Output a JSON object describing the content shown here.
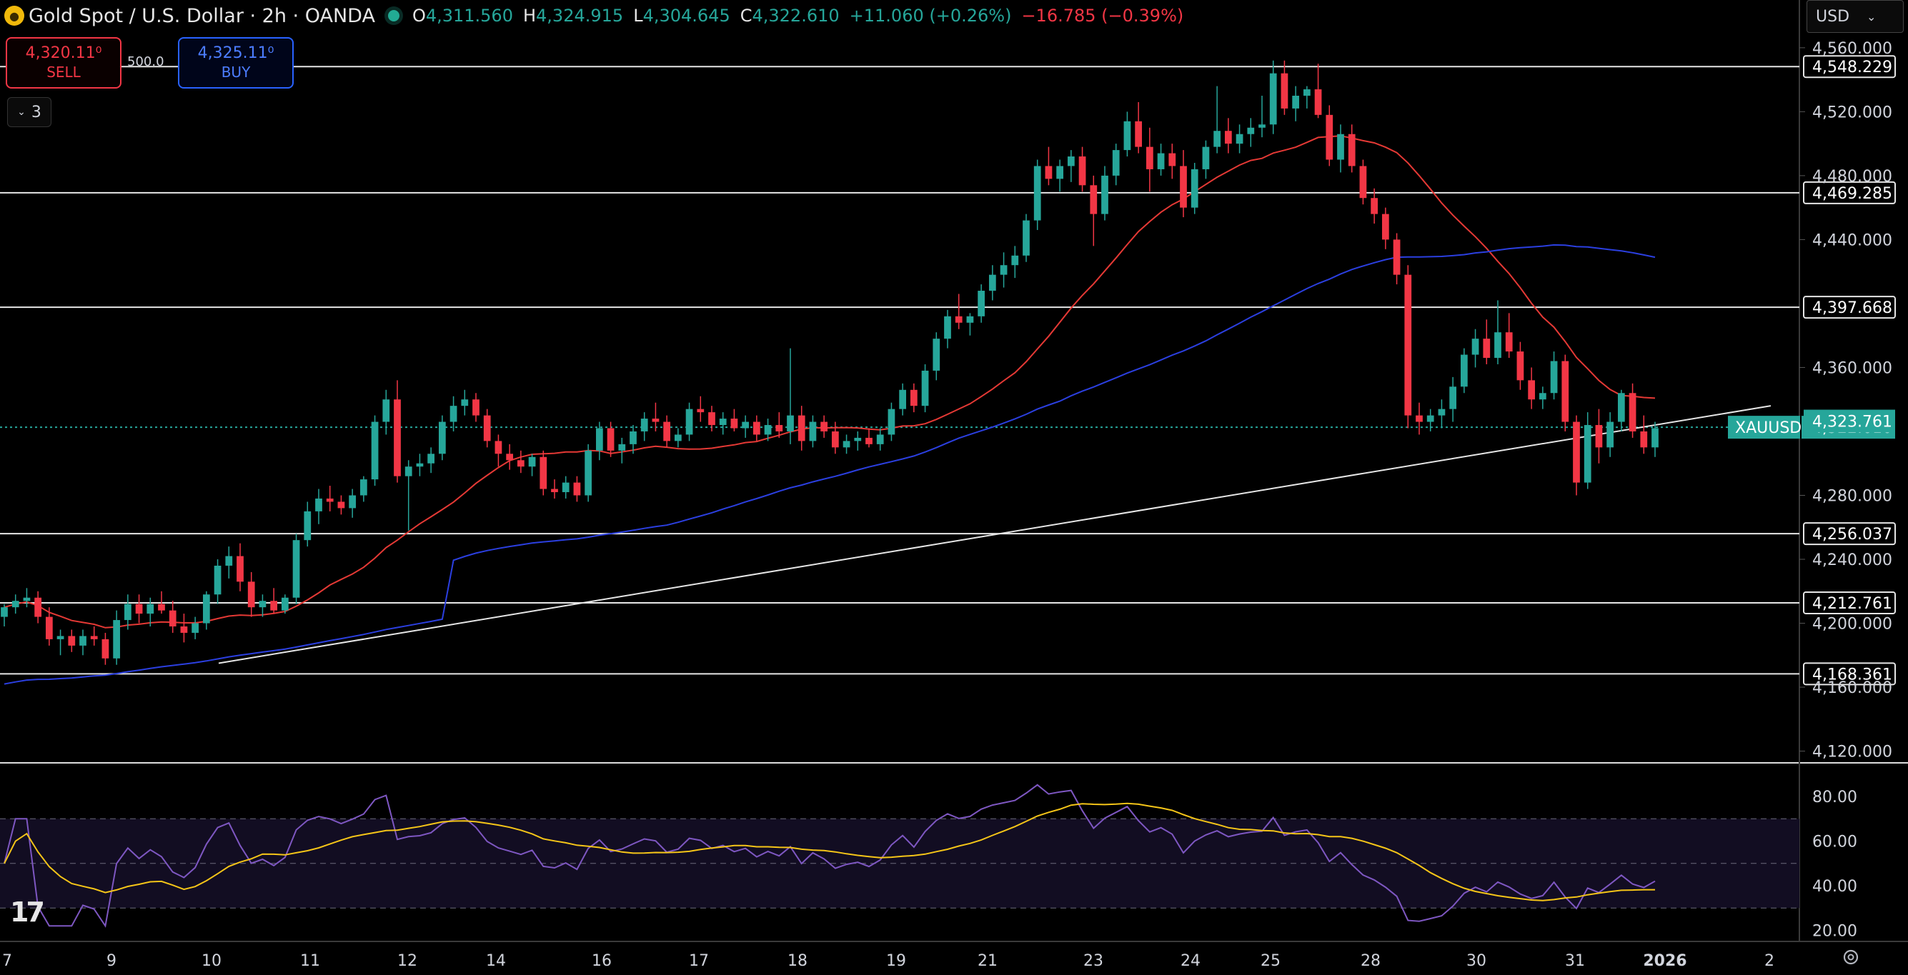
{
  "header": {
    "symbol_title": "Gold Spot / U.S. Dollar · 2h · OANDA",
    "open_label": "O",
    "open": "4,311.560",
    "high_label": "H",
    "high": "4,324.915",
    "low_label": "L",
    "low": "4,304.645",
    "close_label": "C",
    "close": "4,322.610",
    "change": "+11.060 (+0.26%)",
    "change2": "−16.785 (−0.39%)"
  },
  "trade": {
    "sell_price": "4,320.11⁰",
    "sell_label": "SELL",
    "buy_price": "4,325.11⁰",
    "buy_label": "BUY",
    "spread": "500.0"
  },
  "indicators_toggle": {
    "count": "3",
    "icon": "chevron-down-icon"
  },
  "currency_selector": {
    "value": "USD",
    "icon": "chevron-down-icon"
  },
  "colors": {
    "up": "#26a69a",
    "down": "#f23645",
    "ma_fast": "#e53935",
    "ma_slow": "#2b3fe0",
    "rsi": "#7e57c2",
    "rsi_ma": "#f5c518",
    "price_tag": "#26a69a",
    "hline": "#e6e6e6"
  },
  "chart_data": {
    "type": "candlestick",
    "symbol": "XAUUSD",
    "last_price": "4,322.610",
    "y_ticks": [
      "4,560.000",
      "4,520.000",
      "4,480.000",
      "4,440.000",
      "4,360.000",
      "4,280.000",
      "4,240.000",
      "4,200.000",
      "4,160.000",
      "4,120.000"
    ],
    "ylim": [
      4114,
      4572
    ],
    "x_ticks": [
      "7",
      "9",
      "10",
      "11",
      "12",
      "14",
      "16",
      "17",
      "18",
      "19",
      "21",
      "23",
      "24",
      "25",
      "28",
      "30",
      "31",
      "2026",
      "2"
    ],
    "horizontal_levels": [
      "4,548.229",
      "4,469.285",
      "4,397.668",
      "4,256.037",
      "4,212.761",
      "4,168.361"
    ],
    "marker_labels": [
      "4,323.761"
    ],
    "trendline": {
      "from": 4175,
      "to": 4336
    },
    "candles": [
      [
        4204,
        4212,
        4198,
        4210
      ],
      [
        4210,
        4218,
        4206,
        4214
      ],
      [
        4214,
        4222,
        4210,
        4216
      ],
      [
        4216,
        4220,
        4200,
        4204
      ],
      [
        4204,
        4210,
        4186,
        4190
      ],
      [
        4190,
        4196,
        4180,
        4192
      ],
      [
        4192,
        4196,
        4182,
        4186
      ],
      [
        4186,
        4196,
        4180,
        4192
      ],
      [
        4192,
        4198,
        4186,
        4190
      ],
      [
        4190,
        4194,
        4174,
        4178
      ],
      [
        4178,
        4208,
        4174,
        4202
      ],
      [
        4202,
        4218,
        4196,
        4212
      ],
      [
        4212,
        4218,
        4200,
        4206
      ],
      [
        4206,
        4216,
        4198,
        4212
      ],
      [
        4212,
        4220,
        4206,
        4208
      ],
      [
        4208,
        4214,
        4194,
        4198
      ],
      [
        4198,
        4206,
        4188,
        4194
      ],
      [
        4194,
        4204,
        4190,
        4200
      ],
      [
        4200,
        4220,
        4196,
        4218
      ],
      [
        4218,
        4240,
        4212,
        4236
      ],
      [
        4236,
        4248,
        4228,
        4242
      ],
      [
        4242,
        4250,
        4220,
        4226
      ],
      [
        4226,
        4232,
        4204,
        4210
      ],
      [
        4210,
        4218,
        4204,
        4214
      ],
      [
        4214,
        4222,
        4206,
        4208
      ],
      [
        4208,
        4218,
        4206,
        4216
      ],
      [
        4216,
        4256,
        4212,
        4252
      ],
      [
        4252,
        4276,
        4248,
        4270
      ],
      [
        4270,
        4284,
        4262,
        4278
      ],
      [
        4278,
        4286,
        4270,
        4276
      ],
      [
        4276,
        4280,
        4268,
        4272
      ],
      [
        4272,
        4284,
        4266,
        4280
      ],
      [
        4280,
        4292,
        4276,
        4290
      ],
      [
        4290,
        4330,
        4286,
        4326
      ],
      [
        4326,
        4346,
        4318,
        4340
      ],
      [
        4340,
        4352,
        4288,
        4292
      ],
      [
        4292,
        4302,
        4258,
        4298
      ],
      [
        4298,
        4306,
        4292,
        4300
      ],
      [
        4300,
        4310,
        4294,
        4306
      ],
      [
        4306,
        4330,
        4302,
        4326
      ],
      [
        4326,
        4342,
        4320,
        4336
      ],
      [
        4336,
        4346,
        4330,
        4340
      ],
      [
        4340,
        4344,
        4326,
        4330
      ],
      [
        4330,
        4334,
        4310,
        4314
      ],
      [
        4314,
        4318,
        4298,
        4306
      ],
      [
        4306,
        4312,
        4296,
        4302
      ],
      [
        4302,
        4308,
        4294,
        4298
      ],
      [
        4298,
        4306,
        4292,
        4304
      ],
      [
        4304,
        4308,
        4280,
        4284
      ],
      [
        4284,
        4290,
        4278,
        4282
      ],
      [
        4282,
        4292,
        4278,
        4288
      ],
      [
        4288,
        4292,
        4276,
        4280
      ],
      [
        4280,
        4312,
        4276,
        4308
      ],
      [
        4308,
        4326,
        4302,
        4322
      ],
      [
        4322,
        4326,
        4304,
        4308
      ],
      [
        4308,
        4316,
        4300,
        4312
      ],
      [
        4312,
        4324,
        4306,
        4320
      ],
      [
        4320,
        4332,
        4314,
        4328
      ],
      [
        4328,
        4338,
        4320,
        4326
      ],
      [
        4326,
        4330,
        4310,
        4314
      ],
      [
        4314,
        4322,
        4310,
        4318
      ],
      [
        4318,
        4338,
        4314,
        4334
      ],
      [
        4334,
        4342,
        4326,
        4332
      ],
      [
        4332,
        4336,
        4320,
        4324
      ],
      [
        4324,
        4332,
        4318,
        4328
      ],
      [
        4328,
        4334,
        4320,
        4322
      ],
      [
        4322,
        4330,
        4316,
        4326
      ],
      [
        4326,
        4330,
        4314,
        4318
      ],
      [
        4318,
        4328,
        4314,
        4324
      ],
      [
        4324,
        4332,
        4316,
        4320
      ],
      [
        4320,
        4372,
        4312,
        4330
      ],
      [
        4330,
        4336,
        4308,
        4314
      ],
      [
        4314,
        4330,
        4310,
        4326
      ],
      [
        4326,
        4330,
        4316,
        4320
      ],
      [
        4320,
        4326,
        4306,
        4310
      ],
      [
        4310,
        4318,
        4306,
        4314
      ],
      [
        4314,
        4320,
        4308,
        4316
      ],
      [
        4316,
        4322,
        4310,
        4312
      ],
      [
        4312,
        4322,
        4308,
        4318
      ],
      [
        4318,
        4338,
        4314,
        4334
      ],
      [
        4334,
        4350,
        4330,
        4346
      ],
      [
        4346,
        4350,
        4332,
        4336
      ],
      [
        4336,
        4362,
        4332,
        4358
      ],
      [
        4358,
        4382,
        4352,
        4378
      ],
      [
        4378,
        4396,
        4372,
        4392
      ],
      [
        4392,
        4406,
        4384,
        4388
      ],
      [
        4388,
        4394,
        4380,
        4392
      ],
      [
        4392,
        4412,
        4388,
        4408
      ],
      [
        4408,
        4424,
        4402,
        4418
      ],
      [
        4418,
        4432,
        4410,
        4424
      ],
      [
        4424,
        4436,
        4416,
        4430
      ],
      [
        4430,
        4456,
        4426,
        4452
      ],
      [
        4452,
        4490,
        4446,
        4486
      ],
      [
        4486,
        4498,
        4474,
        4478
      ],
      [
        4478,
        4490,
        4470,
        4486
      ],
      [
        4486,
        4496,
        4476,
        4492
      ],
      [
        4492,
        4498,
        4470,
        4474
      ],
      [
        4474,
        4480,
        4436,
        4456
      ],
      [
        4456,
        4486,
        4452,
        4480
      ],
      [
        4480,
        4500,
        4474,
        4496
      ],
      [
        4496,
        4520,
        4492,
        4514
      ],
      [
        4514,
        4526,
        4494,
        4498
      ],
      [
        4498,
        4510,
        4470,
        4484
      ],
      [
        4484,
        4500,
        4480,
        4494
      ],
      [
        4494,
        4500,
        4478,
        4486
      ],
      [
        4486,
        4496,
        4454,
        4460
      ],
      [
        4460,
        4488,
        4456,
        4484
      ],
      [
        4484,
        4502,
        4478,
        4498
      ],
      [
        4498,
        4536,
        4494,
        4508
      ],
      [
        4508,
        4516,
        4494,
        4500
      ],
      [
        4500,
        4512,
        4494,
        4506
      ],
      [
        4506,
        4516,
        4498,
        4510
      ],
      [
        4510,
        4530,
        4504,
        4512
      ],
      [
        4512,
        4552,
        4506,
        4544
      ],
      [
        4544,
        4552,
        4518,
        4522
      ],
      [
        4522,
        4536,
        4514,
        4530
      ],
      [
        4530,
        4536,
        4522,
        4534
      ],
      [
        4534,
        4550,
        4516,
        4518
      ],
      [
        4518,
        4524,
        4486,
        4490
      ],
      [
        4490,
        4512,
        4482,
        4506
      ],
      [
        4506,
        4512,
        4482,
        4486
      ],
      [
        4486,
        4490,
        4462,
        4466
      ],
      [
        4466,
        4472,
        4450,
        4456
      ],
      [
        4456,
        4460,
        4434,
        4440
      ],
      [
        4440,
        4444,
        4412,
        4418
      ],
      [
        4418,
        4424,
        4322,
        4330
      ],
      [
        4330,
        4338,
        4318,
        4326
      ],
      [
        4326,
        4334,
        4320,
        4330
      ],
      [
        4330,
        4340,
        4322,
        4334
      ],
      [
        4334,
        4354,
        4326,
        4348
      ],
      [
        4348,
        4372,
        4344,
        4368
      ],
      [
        4368,
        4384,
        4360,
        4378
      ],
      [
        4378,
        4390,
        4362,
        4366
      ],
      [
        4366,
        4402,
        4362,
        4382
      ],
      [
        4382,
        4394,
        4366,
        4370
      ],
      [
        4370,
        4376,
        4346,
        4352
      ],
      [
        4352,
        4360,
        4334,
        4340
      ],
      [
        4340,
        4348,
        4334,
        4344
      ],
      [
        4344,
        4370,
        4340,
        4364
      ],
      [
        4364,
        4368,
        4320,
        4326
      ],
      [
        4326,
        4330,
        4280,
        4288
      ],
      [
        4288,
        4332,
        4284,
        4324
      ],
      [
        4324,
        4334,
        4300,
        4310
      ],
      [
        4310,
        4332,
        4304,
        4326
      ],
      [
        4326,
        4346,
        4320,
        4344
      ],
      [
        4344,
        4350,
        4316,
        4320
      ],
      [
        4320,
        4330,
        4306,
        4310
      ],
      [
        4310,
        4326,
        4304,
        4322
      ]
    ],
    "rsi": {
      "y_ticks": [
        "80.00",
        "60.00",
        "40.00",
        "20.00"
      ],
      "ylim": [
        16,
        88
      ],
      "bands": [
        70,
        50,
        30
      ]
    }
  }
}
